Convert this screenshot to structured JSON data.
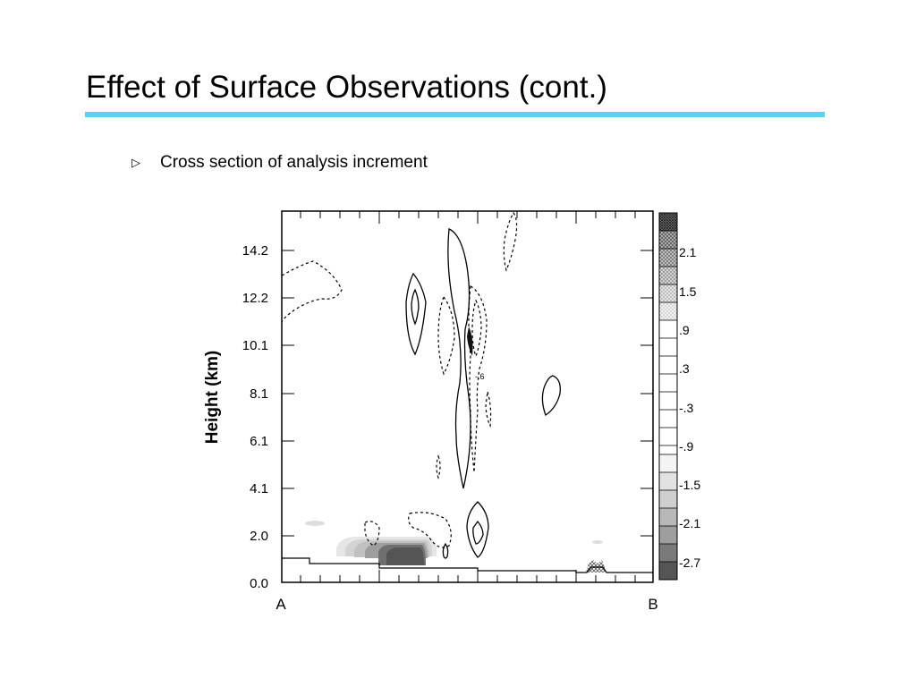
{
  "slide": {
    "title": "Effect of Surface Observations (cont.)",
    "bullets": [
      {
        "marker": "▷",
        "text": "Cross section of analysis increment"
      }
    ],
    "accent_color": "#5ad1f0"
  },
  "chart_data": {
    "type": "heatmap",
    "title": "",
    "xlabel": "",
    "ylabel": "Height (km)",
    "x_tick_labels": [
      "A",
      "B"
    ],
    "y_ticks": [
      0.0,
      2.0,
      4.1,
      6.1,
      8.1,
      10.1,
      12.2,
      14.2
    ],
    "y_tick_labels": [
      "0.0",
      "2.0",
      "4.1",
      "6.1",
      "8.1",
      "10.1",
      "12.2",
      "14.2"
    ],
    "ylim": [
      0.0,
      15.7
    ],
    "colorbar": {
      "levels": [
        2.7,
        2.4,
        2.1,
        1.8,
        1.5,
        1.2,
        0.9,
        0.6,
        0.3,
        0.0,
        -0.3,
        -0.6,
        -0.9,
        -1.2,
        -1.5,
        -1.8,
        -2.1,
        -2.4,
        -2.7
      ],
      "tick_labels": [
        "2.1",
        "1.5",
        ".9",
        ".3",
        "-.3",
        "-.9",
        "-1.5",
        "-2.1",
        "-2.7"
      ],
      "positive_style": "cross-hatched",
      "negative_style": "gray shading"
    },
    "inline_labels": [
      "-.6"
    ],
    "contours": "solid = positive, dashed = negative"
  }
}
